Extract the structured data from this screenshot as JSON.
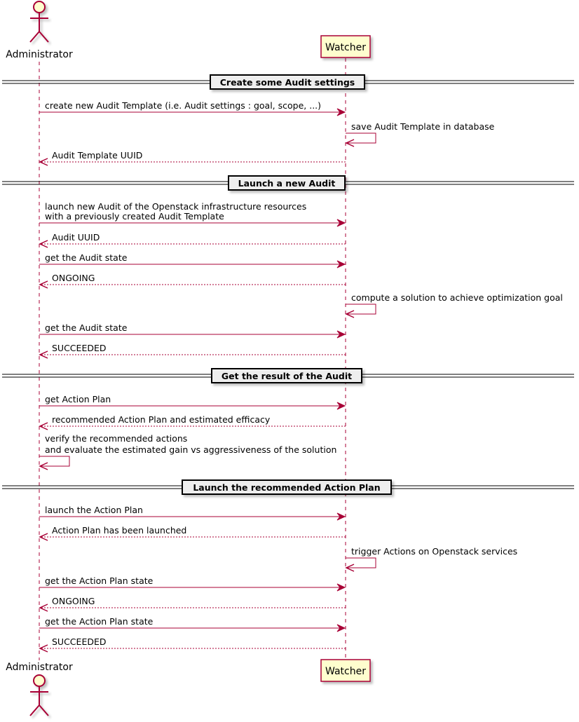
{
  "colors": {
    "line": "#a80036",
    "participant_fill": "#fefece",
    "divider_fill": "#eeeeee"
  },
  "participants": [
    {
      "id": "A",
      "name": "Administrator",
      "kind": "actor"
    },
    {
      "id": "W",
      "name": "Watcher",
      "kind": "participant"
    }
  ],
  "dividers": [
    "Create some Audit settings",
    "Launch a new Audit",
    "Get the result of the Audit",
    "Launch the recommended Action Plan"
  ],
  "messages": [
    {
      "from": "A",
      "to": "W",
      "type": "sync",
      "lines": [
        "create new Audit Template (i.e. Audit settings : goal, scope, ...)"
      ]
    },
    {
      "from": "W",
      "to": "W",
      "type": "self",
      "lines": [
        "save Audit Template in database"
      ]
    },
    {
      "from": "W",
      "to": "A",
      "type": "return",
      "lines": [
        "Audit Template UUID"
      ]
    },
    {
      "from": "A",
      "to": "W",
      "type": "sync",
      "lines": [
        "launch new Audit of the Openstack infrastructure resources",
        "with a previously created Audit Template"
      ]
    },
    {
      "from": "W",
      "to": "A",
      "type": "return",
      "lines": [
        "Audit UUID"
      ]
    },
    {
      "from": "A",
      "to": "W",
      "type": "sync",
      "lines": [
        "get the Audit state"
      ]
    },
    {
      "from": "W",
      "to": "A",
      "type": "return",
      "lines": [
        "ONGOING"
      ]
    },
    {
      "from": "W",
      "to": "W",
      "type": "self",
      "lines": [
        "compute a solution to achieve optimization goal"
      ]
    },
    {
      "from": "A",
      "to": "W",
      "type": "sync",
      "lines": [
        "get the Audit state"
      ]
    },
    {
      "from": "W",
      "to": "A",
      "type": "return",
      "lines": [
        "SUCCEEDED"
      ]
    },
    {
      "from": "A",
      "to": "W",
      "type": "sync",
      "lines": [
        "get Action Plan"
      ]
    },
    {
      "from": "W",
      "to": "A",
      "type": "return",
      "lines": [
        "recommended Action Plan and estimated efficacy"
      ]
    },
    {
      "from": "A",
      "to": "A",
      "type": "self",
      "lines": [
        "verify the recommended actions",
        "and evaluate the estimated gain vs aggressiveness of the solution"
      ]
    },
    {
      "from": "A",
      "to": "W",
      "type": "sync",
      "lines": [
        "launch the Action Plan"
      ]
    },
    {
      "from": "W",
      "to": "A",
      "type": "return",
      "lines": [
        "Action Plan has been launched"
      ]
    },
    {
      "from": "W",
      "to": "W",
      "type": "self",
      "lines": [
        "trigger Actions on Openstack services"
      ]
    },
    {
      "from": "A",
      "to": "W",
      "type": "sync",
      "lines": [
        "get the Action Plan state"
      ]
    },
    {
      "from": "W",
      "to": "A",
      "type": "return",
      "lines": [
        "ONGOING"
      ]
    },
    {
      "from": "A",
      "to": "W",
      "type": "sync",
      "lines": [
        "get the Action Plan state"
      ]
    },
    {
      "from": "W",
      "to": "A",
      "type": "return",
      "lines": [
        "SUCCEEDED"
      ]
    }
  ]
}
